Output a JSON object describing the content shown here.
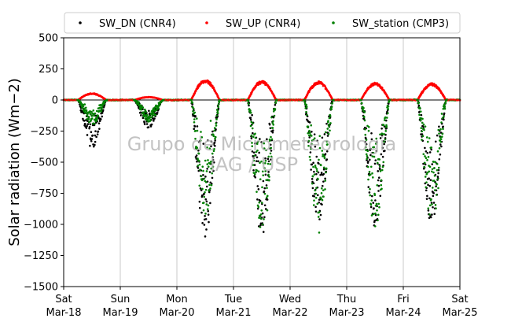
{
  "chart_data": {
    "type": "scatter",
    "title": "",
    "xlabel": "",
    "ylabel": "Solar radiation (Wm−2)",
    "ylim": [
      -1500,
      500
    ],
    "yticks": [
      500,
      250,
      0,
      -250,
      -500,
      -750,
      -1000,
      -1250,
      -1500
    ],
    "ytick_labels": [
      "500",
      "250",
      "0",
      "−250",
      "−500",
      "−750",
      "−1000",
      "−1250",
      "−1500"
    ],
    "xlim": [
      "2018-03-18",
      "2018-03-25"
    ],
    "xticks": [
      {
        "date": "2018-03-18",
        "day": "Sat",
        "label": "Mar-18"
      },
      {
        "date": "2018-03-19",
        "day": "Sun",
        "label": "Mar-19"
      },
      {
        "date": "2018-03-20",
        "day": "Mon",
        "label": "Mar-20"
      },
      {
        "date": "2018-03-21",
        "day": "Tue",
        "label": "Mar-21"
      },
      {
        "date": "2018-03-22",
        "day": "Wed",
        "label": "Mar-22"
      },
      {
        "date": "2018-03-23",
        "day": "Thu",
        "label": "Mar-23"
      },
      {
        "date": "2018-03-24",
        "day": "Fri",
        "label": "Mar-24"
      },
      {
        "date": "2018-03-25",
        "day": "Sat",
        "label": "Mar-25"
      }
    ],
    "grid": "vertical",
    "legend_position": "top",
    "watermark": [
      "Grupo de Micrometeorologia",
      "IAG / USP"
    ],
    "series": [
      {
        "name": "SW_DN (CNR4)",
        "color": "#000000",
        "marker": "dot",
        "daily_min": [
          -390,
          -225,
          -1130,
          -1090,
          -1000,
          -1020,
          -1000
        ]
      },
      {
        "name": "SW_UP (CNR4)",
        "color": "#ff0000",
        "marker": "dot",
        "daily_max": [
          55,
          25,
          165,
          155,
          150,
          140,
          135
        ]
      },
      {
        "name": "SW_station (CMP3)",
        "color": "#008000",
        "marker": "dot",
        "daily_min": [
          -200,
          -175,
          -950,
          -1130,
          -1080,
          -1040,
          -1030
        ]
      }
    ]
  }
}
